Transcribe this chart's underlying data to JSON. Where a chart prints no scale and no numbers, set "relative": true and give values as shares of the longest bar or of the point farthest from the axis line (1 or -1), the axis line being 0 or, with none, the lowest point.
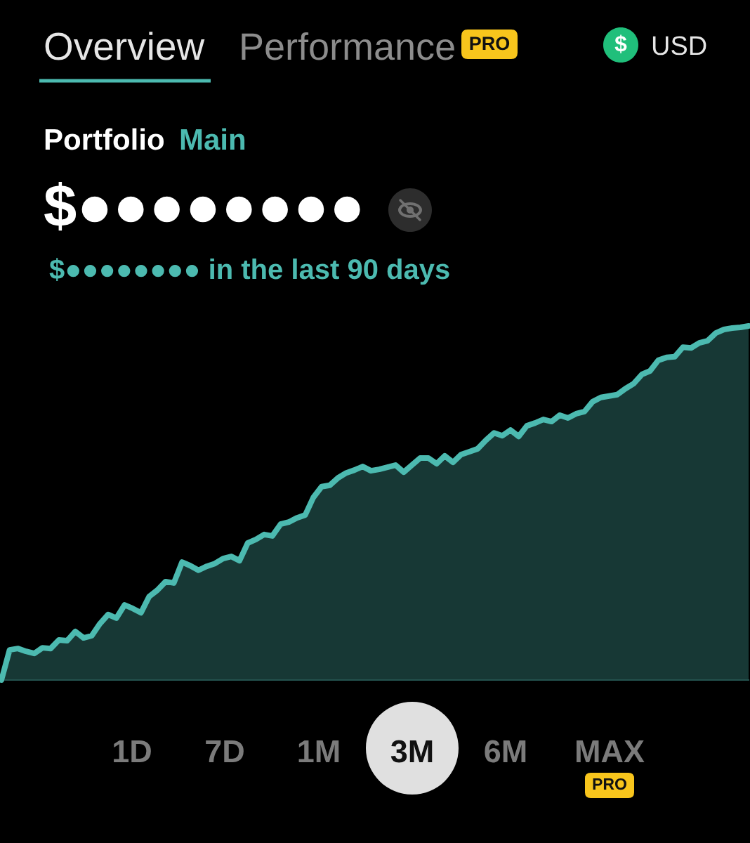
{
  "chart_data": {
    "type": "area",
    "relative": true,
    "categories": [
      null,
      null,
      null,
      null,
      null,
      null,
      null,
      null,
      null,
      null,
      null,
      null,
      null,
      null,
      null,
      null,
      null,
      null,
      null,
      null,
      null,
      null,
      null,
      null,
      null,
      null,
      null,
      null,
      null,
      null,
      null,
      null,
      null,
      null,
      null,
      null,
      null,
      null,
      null,
      null,
      null,
      null,
      null,
      null,
      null,
      null,
      null,
      null,
      null,
      null,
      null,
      null,
      null,
      null,
      null,
      null,
      null,
      null,
      null,
      null,
      null,
      null,
      null,
      null,
      null,
      null,
      null,
      null,
      null,
      null,
      null,
      null,
      null,
      null,
      null,
      null,
      null,
      null,
      null,
      null,
      null,
      null,
      null,
      null,
      null,
      null,
      null,
      null,
      null,
      null,
      null,
      null
    ],
    "series": [
      {
        "color": "#4cbab0",
        "values": [
          0,
          0.085,
          0.089,
          0.081,
          0.075,
          0.091,
          0.089,
          0.113,
          0.111,
          0.137,
          0.119,
          0.125,
          0.159,
          0.185,
          0.175,
          0.212,
          0.202,
          0.19,
          0.236,
          0.254,
          0.278,
          0.274,
          0.333,
          0.323,
          0.31,
          0.321,
          0.329,
          0.343,
          0.349,
          0.337,
          0.387,
          0.397,
          0.411,
          0.407,
          0.44,
          0.446,
          0.458,
          0.466,
          0.516,
          0.546,
          0.55,
          0.571,
          0.585,
          0.593,
          0.603,
          0.591,
          0.595,
          0.601,
          0.607,
          0.587,
          0.607,
          0.627,
          0.627,
          0.611,
          0.633,
          0.615,
          0.637,
          0.645,
          0.653,
          0.677,
          0.698,
          0.69,
          0.706,
          0.688,
          0.718,
          0.726,
          0.736,
          0.73,
          0.748,
          0.74,
          0.752,
          0.758,
          0.786,
          0.798,
          0.802,
          0.806,
          0.823,
          0.837,
          0.863,
          0.873,
          0.903,
          0.911,
          0.913,
          0.94,
          0.938,
          0.952,
          0.958,
          0.98,
          0.99,
          0.994,
          0.996,
          1
        ]
      }
    ],
    "annotations": [
      "Overview",
      "Performance",
      "PRO",
      "$",
      "USD",
      "Portfolio",
      "Main",
      "$●●●●●●●●",
      "$●●●●●●●● in the last 90 days",
      "1D",
      "7D",
      "1M",
      "3M",
      "6M",
      "MAX",
      "PRO"
    ]
  }
}
